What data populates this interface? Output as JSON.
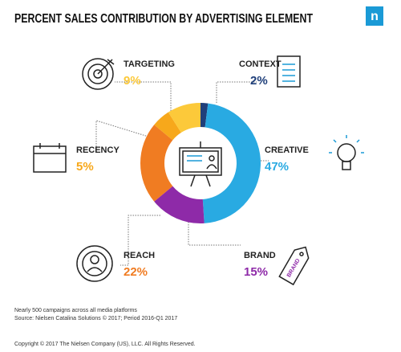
{
  "chart_data": {
    "type": "pie",
    "title": "PERCENT SALES CONTRIBUTION BY ADVERTISING ELEMENT",
    "logo": "n",
    "categories": [
      "CONTEXT",
      "CREATIVE",
      "BRAND",
      "REACH",
      "RECENCY",
      "TARGETING"
    ],
    "values": [
      2,
      47,
      15,
      22,
      5,
      9
    ],
    "value_labels": [
      "2%",
      "47%",
      "15%",
      "22%",
      "5%",
      "9%"
    ],
    "colors": [
      "#1f3f7a",
      "#29aae2",
      "#8e2aa8",
      "#f07c22",
      "#f7a81b",
      "#fcc93a"
    ],
    "tag_text": "BRAND",
    "notes": [
      "Nearly 500 campaigns across all media platforms",
      "Source: Nielsen Catalina Solutions © 2017; Period 2016-Q1 2017"
    ],
    "copyright": "Copyright © 2017 The Nielsen Company (US), LLC. All Rights Reserved."
  }
}
